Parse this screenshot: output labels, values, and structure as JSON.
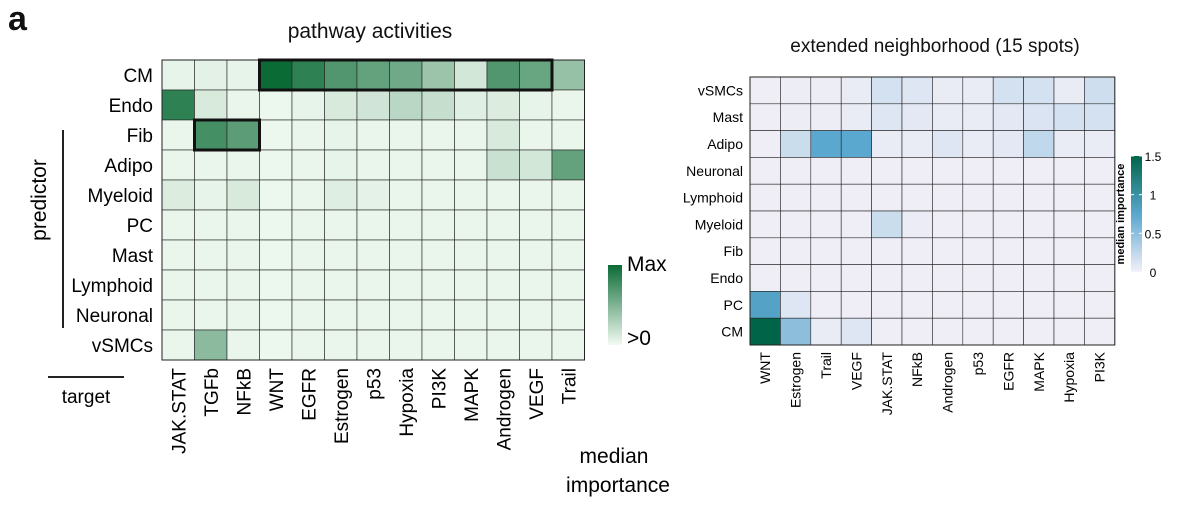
{
  "panel_label": "a",
  "chart_data": [
    {
      "type": "heatmap",
      "title": "pathway activities",
      "ylabel": "predictor",
      "xlabel": "target",
      "rows": [
        "CM",
        "Endo",
        "Fib",
        "Adipo",
        "Myeloid",
        "PC",
        "Mast",
        "Lymphoid",
        "Neuronal",
        "vSMCs"
      ],
      "columns": [
        "JAK.STAT",
        "TGFb",
        "NFkB",
        "WNT",
        "EGFR",
        "Estrogen",
        "p53",
        "Hypoxia",
        "PI3K",
        "MAPK",
        "Androgen",
        "VEGF",
        "Trail"
      ],
      "values": [
        [
          0.05,
          0.07,
          0.05,
          1.0,
          0.85,
          0.7,
          0.62,
          0.57,
          0.38,
          0.14,
          0.7,
          0.6,
          0.4
        ],
        [
          0.85,
          0.12,
          0.04,
          0.03,
          0.05,
          0.12,
          0.15,
          0.25,
          0.2,
          0.08,
          0.1,
          0.05,
          0.04
        ],
        [
          0.04,
          0.75,
          0.65,
          0.03,
          0.04,
          0.05,
          0.04,
          0.04,
          0.04,
          0.04,
          0.12,
          0.04,
          0.04
        ],
        [
          0.04,
          0.04,
          0.04,
          0.03,
          0.04,
          0.05,
          0.04,
          0.04,
          0.04,
          0.04,
          0.18,
          0.14,
          0.62
        ],
        [
          0.1,
          0.05,
          0.12,
          0.03,
          0.04,
          0.09,
          0.06,
          0.04,
          0.04,
          0.04,
          0.04,
          0.04,
          0.04
        ],
        [
          0.04,
          0.04,
          0.04,
          0.03,
          0.04,
          0.04,
          0.04,
          0.04,
          0.04,
          0.04,
          0.04,
          0.04,
          0.04
        ],
        [
          0.04,
          0.04,
          0.04,
          0.03,
          0.04,
          0.04,
          0.04,
          0.04,
          0.04,
          0.04,
          0.04,
          0.04,
          0.04
        ],
        [
          0.04,
          0.04,
          0.04,
          0.03,
          0.04,
          0.04,
          0.04,
          0.04,
          0.04,
          0.04,
          0.04,
          0.04,
          0.04
        ],
        [
          0.04,
          0.04,
          0.04,
          0.03,
          0.04,
          0.04,
          0.04,
          0.04,
          0.04,
          0.04,
          0.04,
          0.04,
          0.04
        ],
        [
          0.04,
          0.45,
          0.04,
          0.03,
          0.04,
          0.04,
          0.04,
          0.04,
          0.04,
          0.04,
          0.04,
          0.04,
          0.04
        ]
      ],
      "highlight_groups": [
        {
          "row": "CM",
          "from": "WNT",
          "to": "VEGF"
        },
        {
          "row": "Fib",
          "from": "TGFb",
          "to": "NFkB"
        }
      ],
      "legend": {
        "title": "median importance",
        "max_label": "Max",
        "min_label": ">0",
        "placement": "right"
      },
      "color_low": "#f3fbf3",
      "color_high": "#0b6b35"
    },
    {
      "type": "heatmap",
      "title": "extended neighborhood (15 spots)",
      "rows": [
        "vSMCs",
        "Mast",
        "Adipo",
        "Neuronal",
        "Lymphoid",
        "Myeloid",
        "Fib",
        "Endo",
        "PC",
        "CM"
      ],
      "columns": [
        "WNT",
        "Estrogen",
        "Trail",
        "VEGF",
        "JAK.STAT",
        "NFkB",
        "Androgen",
        "p53",
        "EGFR",
        "MAPK",
        "Hypoxia",
        "PI3K"
      ],
      "values": [
        [
          0.02,
          0.03,
          0.03,
          0.05,
          0.15,
          0.1,
          0.05,
          0.05,
          0.15,
          0.15,
          0.05,
          0.18
        ],
        [
          0.02,
          0.03,
          0.03,
          0.05,
          0.1,
          0.08,
          0.05,
          0.05,
          0.08,
          0.12,
          0.15,
          0.15
        ],
        [
          0.02,
          0.2,
          0.75,
          0.75,
          0.05,
          0.05,
          0.1,
          0.05,
          0.08,
          0.25,
          0.05,
          0.05
        ],
        [
          0.02,
          0.02,
          0.02,
          0.02,
          0.02,
          0.02,
          0.02,
          0.02,
          0.02,
          0.02,
          0.02,
          0.02
        ],
        [
          0.02,
          0.02,
          0.02,
          0.02,
          0.02,
          0.02,
          0.02,
          0.02,
          0.02,
          0.02,
          0.02,
          0.02
        ],
        [
          0.02,
          0.02,
          0.02,
          0.02,
          0.2,
          0.04,
          0.02,
          0.02,
          0.02,
          0.02,
          0.02,
          0.02
        ],
        [
          0.02,
          0.02,
          0.02,
          0.02,
          0.02,
          0.02,
          0.02,
          0.02,
          0.02,
          0.02,
          0.02,
          0.02
        ],
        [
          0.02,
          0.02,
          0.02,
          0.02,
          0.02,
          0.02,
          0.02,
          0.02,
          0.02,
          0.02,
          0.02,
          0.02
        ],
        [
          0.8,
          0.1,
          0.02,
          0.02,
          0.02,
          0.02,
          0.02,
          0.02,
          0.02,
          0.02,
          0.02,
          0.02
        ],
        [
          1.5,
          0.5,
          0.05,
          0.1,
          0.02,
          0.02,
          0.02,
          0.02,
          0.02,
          0.02,
          0.02,
          0.02
        ]
      ],
      "legend": {
        "title": "median importance",
        "ticks": [
          "1.5",
          "1",
          "0.5",
          "0"
        ],
        "tick_values": [
          1.5,
          1,
          0.5,
          0
        ],
        "range": [
          0,
          1.5
        ],
        "placement": "right"
      },
      "color_stops": [
        "#f3f0f8",
        "#5aa7d0",
        "#006548"
      ]
    }
  ]
}
